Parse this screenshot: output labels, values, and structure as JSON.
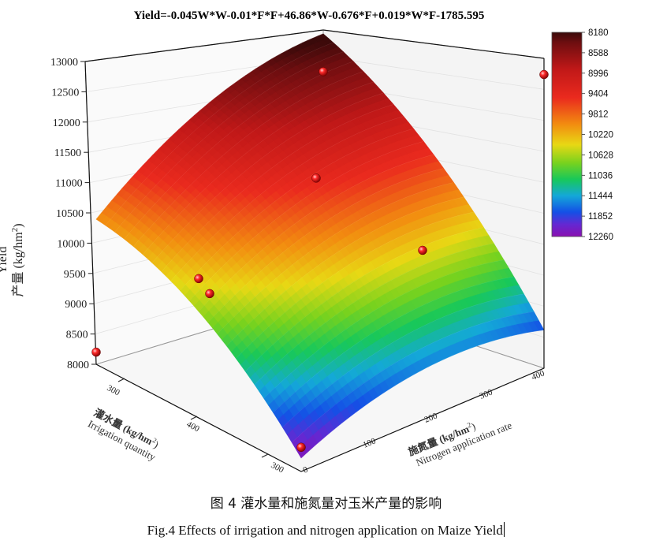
{
  "chart_data": {
    "type": "surface3d",
    "title": "Yield=-0.045W*W-0.01*F*F+46.86*W-0.676*F+0.019*W*F-1785.595",
    "z_axis": {
      "label_cn": "产量 (kg/hm",
      "label_en": "Yield",
      "superscript": "2",
      "close": ")",
      "ticks": [
        "8000",
        "8500",
        "9000",
        "9500",
        "10000",
        "10500",
        "11000",
        "11500",
        "12000",
        "12500",
        "13000"
      ],
      "range": [
        8000,
        13000
      ]
    },
    "irrigation_axis": {
      "label_cn": "灌水量 (kg/hm",
      "label_en": "Irrigation quantity",
      "superscript": "2",
      "close": ")",
      "ticks": [
        "300",
        "400",
        "300"
      ],
      "range": [
        300,
        500
      ]
    },
    "nitrogen_axis": {
      "label_cn": "施氮量 (kg/hm",
      "label_en": "Nitrogen application rate",
      "superscript": "2",
      "close": ")",
      "ticks": [
        "0",
        "100",
        "200",
        "300",
        "400"
      ],
      "range": [
        0,
        400
      ]
    },
    "colorbar": {
      "ticks": [
        "8180",
        "8588",
        "8996",
        "9404",
        "9812",
        "10220",
        "10628",
        "11036",
        "11444",
        "11852",
        "12260"
      ],
      "colors": [
        "#5a0a0a",
        "#b51418",
        "#e61e1e",
        "#ef5a14",
        "#f5a00f",
        "#e6e114",
        "#78d21e",
        "#14c85a",
        "#14a0dc",
        "#1450e6",
        "#6428d2",
        "#7a14b4"
      ]
    },
    "points": [
      {
        "irrigation": 300,
        "nitrogen": 400,
        "yield": 12850
      },
      {
        "irrigation": 300,
        "nitrogen": 200,
        "yield": 10800
      },
      {
        "irrigation": 400,
        "nitrogen": 0,
        "yield": 10300
      },
      {
        "irrigation": 500,
        "nitrogen": 400,
        "yield": 11700
      },
      {
        "irrigation": 500,
        "nitrogen": 200,
        "yield": 8600
      },
      {
        "irrigation": 300,
        "nitrogen": 0,
        "yield": 8400
      },
      {
        "irrigation": 400,
        "nitrogen": 200,
        "yield": 11250
      },
      {
        "irrigation": 500,
        "nitrogen": 0,
        "yield": 8200
      }
    ]
  },
  "caption": {
    "chinese": "图 4  灌水量和施氮量对玉米产量的影响",
    "english": "Fig.4 Effects of irrigation and nitrogen application on Maize Yield"
  }
}
